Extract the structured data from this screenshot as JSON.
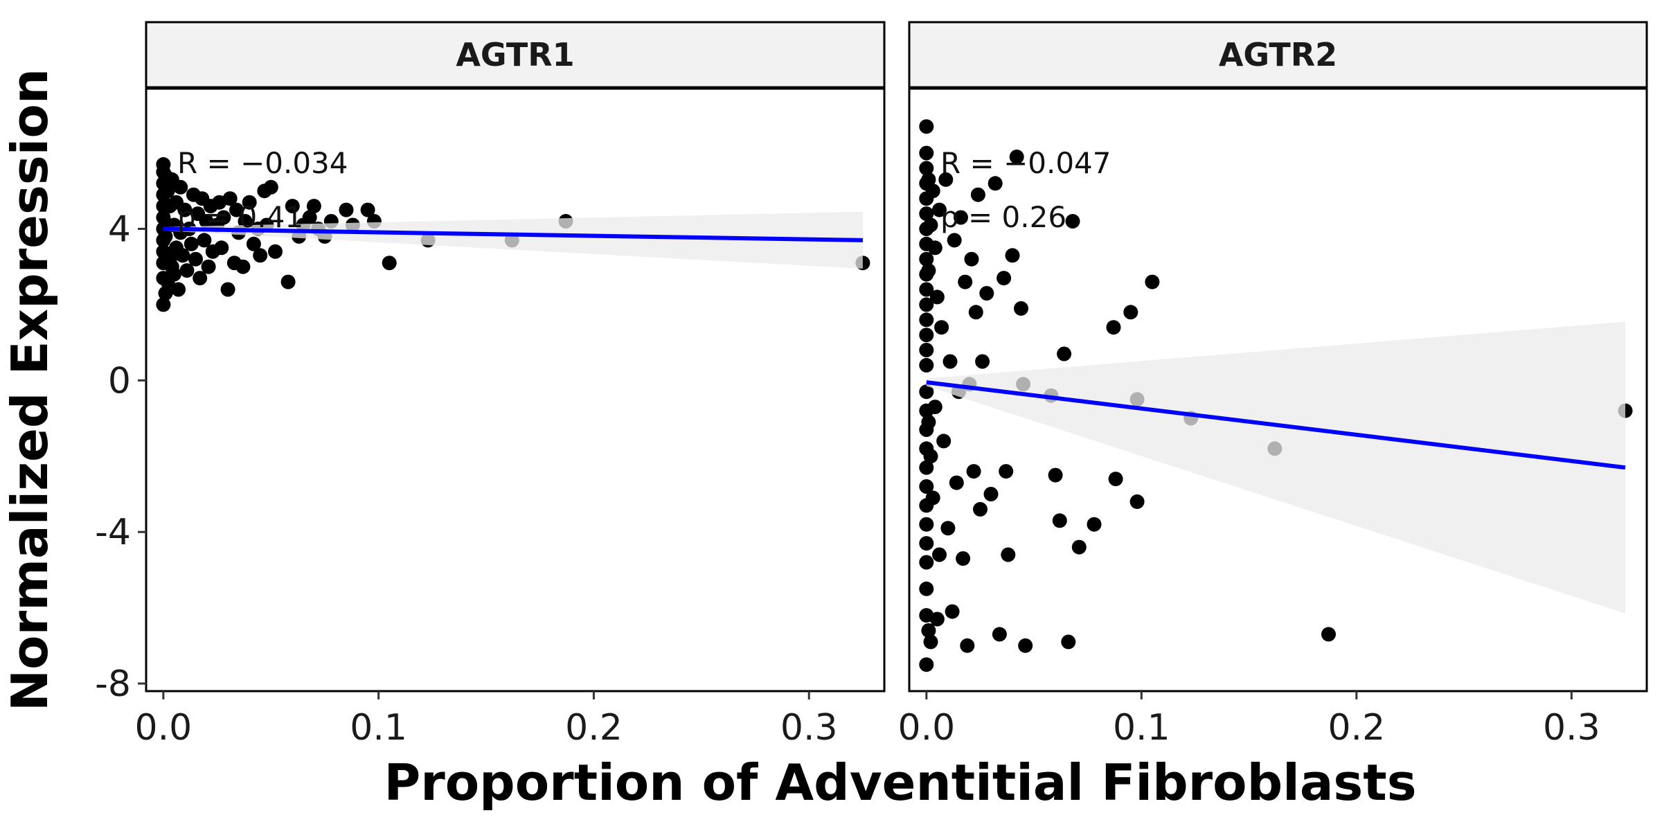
{
  "chart_data": {
    "type": "scatter",
    "xlabel": "Proportion of Adventitial Fibroblasts",
    "ylabel": "Normalized Expression",
    "xlim": [
      -0.008,
      0.335
    ],
    "ylim": [
      -8.2,
      7.7
    ],
    "x_ticks": [
      "0.0",
      "0.1",
      "0.2",
      "0.3"
    ],
    "y_ticks": [
      "4",
      "0",
      "-4",
      "-8"
    ],
    "colors": {
      "points": "#000000",
      "fit_line": "#0000ff",
      "ci_band": "#ebebeb",
      "strip_bg": "#f2f2f2"
    },
    "panels": [
      {
        "title": "AGTR1",
        "annotation_r": "R = −0.034",
        "annotation_p": "p = 0.41",
        "fit": {
          "x": [
            0.0,
            0.325
          ],
          "y": [
            4.0,
            3.7
          ]
        },
        "ci": {
          "x": [
            0.0,
            0.325
          ],
          "upper": [
            4.05,
            4.45
          ],
          "lower": [
            3.95,
            2.95
          ]
        },
        "points": {
          "x": [
            0.0,
            0.0,
            0.0,
            0.0,
            0.0,
            0.0,
            0.0,
            0.0,
            0.0,
            0.0,
            0.0,
            0.0,
            0.001,
            0.001,
            0.001,
            0.002,
            0.002,
            0.003,
            0.003,
            0.004,
            0.004,
            0.005,
            0.005,
            0.006,
            0.006,
            0.007,
            0.008,
            0.008,
            0.009,
            0.01,
            0.011,
            0.012,
            0.013,
            0.014,
            0.015,
            0.016,
            0.017,
            0.018,
            0.019,
            0.02,
            0.021,
            0.022,
            0.023,
            0.025,
            0.026,
            0.027,
            0.028,
            0.03,
            0.031,
            0.033,
            0.034,
            0.035,
            0.037,
            0.038,
            0.04,
            0.042,
            0.044,
            0.045,
            0.047,
            0.048,
            0.05,
            0.052,
            0.058,
            0.06,
            0.063,
            0.065,
            0.068,
            0.07,
            0.072,
            0.075,
            0.078,
            0.085,
            0.088,
            0.095,
            0.098,
            0.105,
            0.123,
            0.162,
            0.187,
            0.325
          ],
          "y": [
            5.7,
            5.5,
            5.2,
            4.9,
            4.6,
            4.3,
            4.0,
            3.7,
            3.4,
            3.1,
            2.7,
            2.0,
            5.4,
            3.8,
            2.3,
            5.0,
            2.6,
            4.6,
            3.2,
            5.3,
            3.0,
            4.1,
            2.8,
            4.7,
            3.5,
            2.4,
            5.1,
            3.9,
            3.3,
            4.5,
            2.9,
            4.0,
            3.6,
            4.9,
            3.2,
            4.4,
            2.7,
            4.8,
            3.7,
            4.2,
            3.0,
            4.6,
            3.4,
            4.1,
            4.7,
            3.5,
            4.3,
            2.4,
            4.8,
            3.1,
            4.5,
            3.9,
            3.0,
            4.2,
            4.7,
            3.6,
            4.0,
            3.3,
            5.0,
            4.1,
            5.1,
            3.4,
            2.6,
            4.6,
            3.8,
            4.1,
            4.3,
            4.6,
            4.0,
            3.8,
            4.2,
            4.5,
            4.1,
            4.5,
            4.2,
            3.1,
            3.7,
            3.7,
            4.2,
            3.1
          ]
        }
      },
      {
        "title": "AGTR2",
        "annotation_r": "R = −0.047",
        "annotation_p": "p = 0.26",
        "fit": {
          "x": [
            0.0,
            0.325
          ],
          "y": [
            -0.05,
            -2.3
          ]
        },
        "ci": {
          "x": [
            0.0,
            0.325
          ],
          "upper": [
            0.05,
            1.55
          ],
          "lower": [
            -0.15,
            -6.15
          ]
        },
        "points": {
          "x": [
            0.0,
            0.0,
            0.0,
            0.0,
            0.0,
            0.0,
            0.0,
            0.0,
            0.0,
            0.0,
            0.0,
            0.0,
            0.0,
            0.0,
            0.0,
            0.0,
            0.0,
            0.0,
            0.0,
            0.0,
            0.0,
            0.0,
            0.0,
            0.0,
            0.0,
            0.0,
            0.0,
            0.0,
            0.0,
            0.001,
            0.001,
            0.001,
            0.001,
            0.002,
            0.002,
            0.002,
            0.003,
            0.003,
            0.004,
            0.004,
            0.005,
            0.005,
            0.006,
            0.006,
            0.007,
            0.008,
            0.009,
            0.01,
            0.011,
            0.012,
            0.013,
            0.014,
            0.015,
            0.016,
            0.017,
            0.018,
            0.019,
            0.02,
            0.021,
            0.022,
            0.023,
            0.024,
            0.025,
            0.026,
            0.028,
            0.03,
            0.032,
            0.034,
            0.036,
            0.037,
            0.038,
            0.04,
            0.042,
            0.044,
            0.045,
            0.046,
            0.058,
            0.06,
            0.062,
            0.064,
            0.066,
            0.068,
            0.071,
            0.078,
            0.087,
            0.088,
            0.095,
            0.098,
            0.098,
            0.105,
            0.123,
            0.162,
            0.187,
            0.325
          ],
          "y": [
            6.7,
            6.0,
            5.6,
            5.2,
            4.8,
            4.4,
            4.0,
            3.6,
            3.2,
            2.8,
            2.4,
            2.0,
            1.6,
            1.2,
            0.8,
            0.4,
            -0.3,
            -0.8,
            -1.3,
            -1.8,
            -2.3,
            -2.8,
            -3.3,
            -3.8,
            -4.3,
            -4.8,
            -5.5,
            -6.2,
            -7.5,
            5.3,
            2.9,
            -1.1,
            -6.6,
            4.1,
            -2.0,
            -6.9,
            5.0,
            -3.1,
            3.5,
            -0.7,
            2.2,
            -6.3,
            4.5,
            -4.6,
            1.4,
            -1.6,
            5.3,
            -3.9,
            0.5,
            -6.1,
            3.7,
            -2.7,
            -0.3,
            4.3,
            -4.7,
            2.6,
            -7.0,
            -0.1,
            3.2,
            -2.4,
            1.8,
            4.9,
            -3.4,
            0.5,
            2.3,
            -3.0,
            5.2,
            -6.7,
            2.7,
            -2.4,
            -4.6,
            3.3,
            5.9,
            1.9,
            -0.1,
            -7.0,
            -0.4,
            -2.5,
            -3.7,
            0.7,
            -6.9,
            4.2,
            -4.4,
            -3.8,
            1.4,
            -2.6,
            1.8,
            -0.5,
            -3.2,
            2.6,
            -1.0,
            -1.8,
            -6.7,
            -0.8
          ]
        }
      }
    ]
  }
}
